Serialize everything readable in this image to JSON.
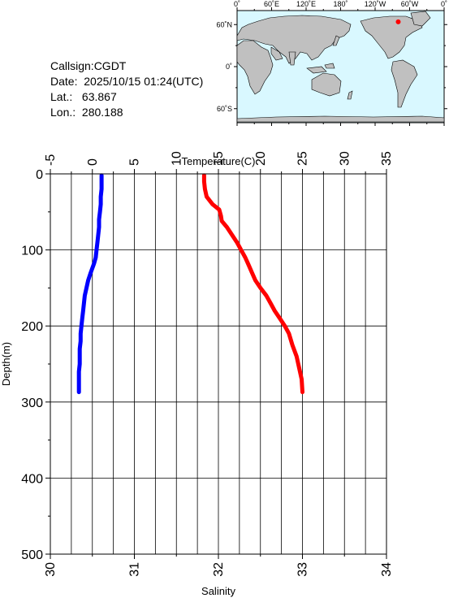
{
  "info": {
    "callsign": "Callsign:CGDT",
    "date": "Date:  2025/10/15 01:24(UTC)",
    "lat_label": "Lat.:",
    "lat_value": "63.867",
    "lon_label": "Lon.:",
    "lon_value": "280.188"
  },
  "map": {
    "top_labels": [
      "0˚",
      "60˚E",
      "120˚E",
      "180˚",
      "120˚W",
      "60˚W",
      "0˚"
    ],
    "left_labels": [
      "60˚N",
      "0˚",
      "60˚S"
    ],
    "ocean_color": "#d9f8ff",
    "land_color": "#c0c0c0",
    "marker_color": "#ff0000",
    "marker": {
      "lat": 63.867,
      "lon": 280.188
    }
  },
  "chart_data": {
    "type": "line",
    "title": "",
    "top_axis": {
      "label": "Temperature(C)",
      "range": [
        -5,
        35
      ],
      "ticks": [
        "-5",
        "0",
        "5",
        "10",
        "15",
        "20",
        "25",
        "30",
        "35"
      ]
    },
    "bottom_axis": {
      "label": "Salinity",
      "range": [
        30,
        34
      ],
      "ticks": [
        "30",
        "31",
        "32",
        "33",
        "34"
      ]
    },
    "left_axis": {
      "label": "Depth(m)",
      "range": [
        0,
        500
      ],
      "inverted": true,
      "ticks": [
        "0",
        "100",
        "200",
        "300",
        "400",
        "500"
      ]
    },
    "grid": true,
    "series": [
      {
        "axis": "bottom",
        "color": "#0000ff",
        "points": [
          [
            30.61,
            2
          ],
          [
            30.61,
            10
          ],
          [
            30.61,
            20
          ],
          [
            30.6,
            30
          ],
          [
            30.6,
            40
          ],
          [
            30.59,
            50
          ],
          [
            30.58,
            60
          ],
          [
            30.58,
            70
          ],
          [
            30.57,
            80
          ],
          [
            30.56,
            90
          ],
          [
            30.55,
            100
          ],
          [
            30.54,
            110
          ],
          [
            30.52,
            118
          ],
          [
            30.48,
            130
          ],
          [
            30.45,
            140
          ],
          [
            30.43,
            150
          ],
          [
            30.41,
            160
          ],
          [
            30.4,
            170
          ],
          [
            30.39,
            180
          ],
          [
            30.38,
            190
          ],
          [
            30.37,
            200
          ],
          [
            30.36,
            210
          ],
          [
            30.36,
            220
          ],
          [
            30.35,
            230
          ],
          [
            30.35,
            240
          ],
          [
            30.35,
            250
          ],
          [
            30.34,
            260
          ],
          [
            30.34,
            270
          ],
          [
            30.34,
            280
          ],
          [
            30.34,
            287
          ]
        ]
      },
      {
        "axis": "top",
        "color": "#ff0000",
        "points": [
          [
            13.3,
            2
          ],
          [
            13.3,
            10
          ],
          [
            13.4,
            20
          ],
          [
            13.6,
            30
          ],
          [
            14.3,
            40
          ],
          [
            15.1,
            47
          ],
          [
            15.3,
            55
          ],
          [
            15.4,
            62
          ],
          [
            16,
            70
          ],
          [
            16.6,
            80
          ],
          [
            17.2,
            90
          ],
          [
            17.7,
            100
          ],
          [
            18.2,
            110
          ],
          [
            18.6,
            120
          ],
          [
            19.0,
            130
          ],
          [
            19.4,
            140
          ],
          [
            20.0,
            150
          ],
          [
            20.7,
            160
          ],
          [
            21.2,
            170
          ],
          [
            21.7,
            180
          ],
          [
            22.3,
            190
          ],
          [
            22.9,
            200
          ],
          [
            23.4,
            210
          ],
          [
            23.8,
            225
          ],
          [
            24.3,
            240
          ],
          [
            24.6,
            255
          ],
          [
            24.9,
            270
          ],
          [
            25.0,
            287
          ]
        ]
      }
    ]
  }
}
